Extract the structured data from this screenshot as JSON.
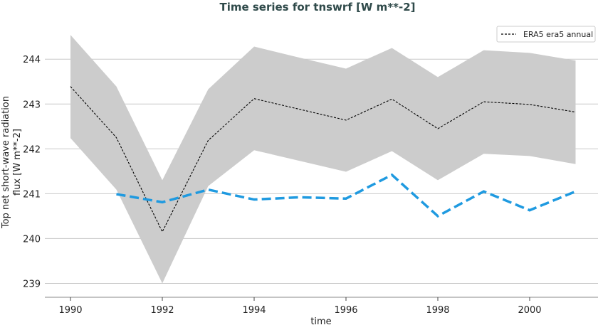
{
  "chart_data": {
    "type": "line",
    "title": "Time series for tnswrf [W m**-2]",
    "xlabel": "time",
    "ylabel_lines": [
      "Top net short-wave radiation",
      "flux [W m**-2]"
    ],
    "xlim": [
      1989.4,
      2001.5
    ],
    "ylim": [
      238.7,
      244.7
    ],
    "xticks": [
      1990,
      1992,
      1994,
      1996,
      1998,
      2000
    ],
    "yticks": [
      239,
      240,
      241,
      242,
      243,
      244
    ],
    "grid": "horizontal",
    "legend_position": "top-right",
    "x": [
      1990,
      1991,
      1992,
      1993,
      1994,
      1995,
      1996,
      1997,
      1998,
      1999,
      2000,
      2001
    ],
    "series": [
      {
        "name": "ERA5 era5 annual",
        "style": "dashed",
        "color": "#000000",
        "values": [
          243.39,
          242.25,
          240.15,
          242.19,
          243.12,
          242.88,
          242.64,
          243.11,
          242.45,
          243.05,
          242.99,
          242.82
        ],
        "band_upper": [
          244.54,
          243.39,
          241.3,
          243.33,
          244.28,
          244.03,
          243.79,
          244.25,
          243.6,
          244.2,
          244.14,
          243.97
        ],
        "band_lower": [
          242.24,
          241.09,
          239.0,
          241.17,
          241.97,
          241.73,
          241.49,
          241.95,
          241.3,
          241.89,
          241.84,
          241.66
        ],
        "band_color": "#cccccc"
      },
      {
        "style": "dashed",
        "color": "#1f9ae0",
        "values": [
          null,
          240.99,
          240.81,
          241.09,
          240.87,
          240.92,
          240.89,
          241.42,
          240.5,
          241.05,
          240.63,
          241.05
        ]
      }
    ]
  }
}
